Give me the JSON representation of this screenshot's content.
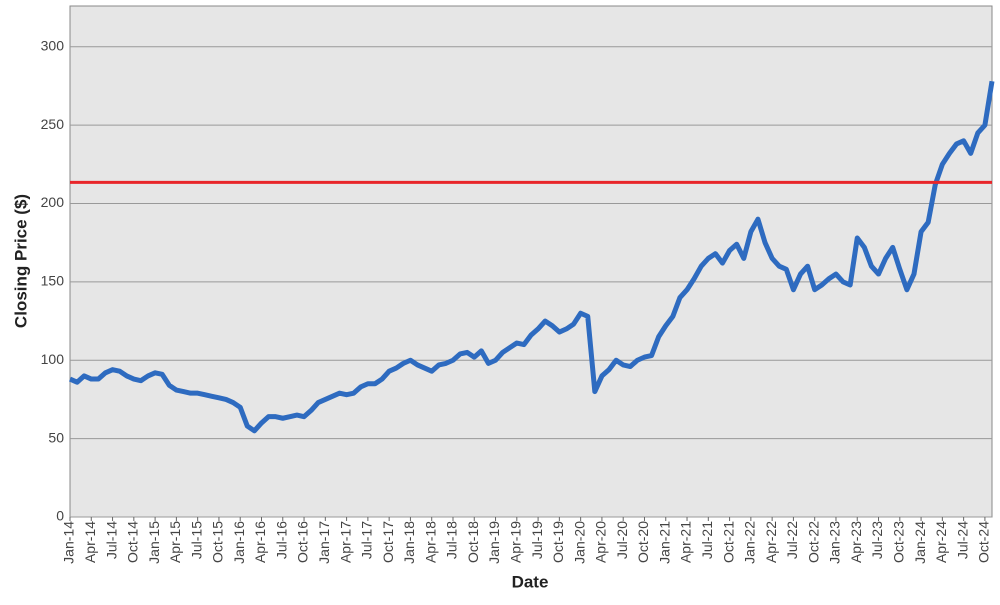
{
  "chart_data": {
    "type": "line",
    "xlabel": "Date",
    "ylabel": "Closing Price ($)",
    "categories": [
      "Jan-14",
      null,
      null,
      "Apr-14",
      null,
      null,
      "Jul-14",
      null,
      null,
      "Oct-14",
      null,
      null,
      "Jan-15",
      null,
      null,
      "Apr-15",
      null,
      null,
      "Jul-15",
      null,
      null,
      "Oct-15",
      null,
      null,
      "Jan-16",
      null,
      null,
      "Apr-16",
      null,
      null,
      "Jul-16",
      null,
      null,
      "Oct-16",
      null,
      null,
      "Jan-17",
      null,
      null,
      "Apr-17",
      null,
      null,
      "Jul-17",
      null,
      null,
      "Oct-17",
      null,
      null,
      "Jan-18",
      null,
      null,
      "Apr-18",
      null,
      null,
      "Jul-18",
      null,
      null,
      "Oct-18",
      null,
      null,
      "Jan-19",
      null,
      null,
      "Apr-19",
      null,
      null,
      "Jul-19",
      null,
      null,
      "Oct-19",
      null,
      null,
      "Jan-20",
      null,
      null,
      "Apr-20",
      null,
      null,
      "Jul-20",
      null,
      null,
      "Oct-20",
      null,
      null,
      "Jan-21",
      null,
      null,
      "Apr-21",
      null,
      null,
      "Jul-21",
      null,
      null,
      "Oct-21",
      null,
      null,
      "Jan-22",
      null,
      null,
      "Apr-22",
      null,
      null,
      "Jul-22",
      null,
      null,
      "Oct-22",
      null,
      null,
      "Jan-23",
      null,
      null,
      "Apr-23",
      null,
      null,
      "Jul-23",
      null,
      null,
      "Oct-23",
      null,
      null,
      "Jan-24",
      null,
      null,
      "Apr-24",
      null,
      null,
      "Jul-24",
      null,
      null,
      "Oct-24",
      null
    ],
    "values": [
      88,
      86,
      90,
      88,
      88,
      92,
      94,
      93,
      90,
      88,
      87,
      90,
      92,
      91,
      84,
      81,
      80,
      79,
      79,
      78,
      77,
      76,
      75,
      73,
      70,
      58,
      55,
      60,
      64,
      64,
      63,
      64,
      65,
      64,
      68,
      73,
      75,
      77,
      79,
      78,
      79,
      83,
      85,
      85,
      88,
      93,
      95,
      98,
      100,
      97,
      95,
      93,
      97,
      98,
      100,
      104,
      105,
      102,
      106,
      98,
      100,
      105,
      108,
      111,
      110,
      116,
      120,
      125,
      122,
      118,
      120,
      123,
      130,
      128,
      80,
      90,
      94,
      100,
      97,
      96,
      100,
      102,
      103,
      115,
      122,
      128,
      140,
      145,
      152,
      160,
      165,
      168,
      162,
      170,
      174,
      165,
      182,
      190,
      175,
      165,
      160,
      158,
      145,
      155,
      160,
      145,
      148,
      152,
      155,
      150,
      148,
      178,
      172,
      160,
      155,
      165,
      172,
      158,
      145,
      155,
      182,
      188,
      212,
      225,
      232,
      238,
      240,
      232,
      245,
      250,
      278
    ],
    "color": "#2e6bc0",
    "hline": {
      "value": 213.5,
      "color": "#e8262a"
    },
    "ylim": [
      0,
      326
    ],
    "yticks": [
      0,
      50,
      100,
      150,
      200,
      250,
      300
    ],
    "grid": true
  }
}
